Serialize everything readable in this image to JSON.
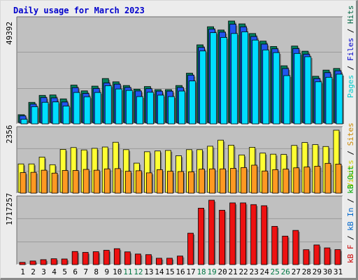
{
  "chart_data": [
    {
      "type": "bar",
      "title": "Daily usage for March 2023",
      "ylabel_max": "49392",
      "legend": [
        {
          "label": "Pages",
          "color": "#00cccc"
        },
        {
          "label": "Files",
          "color": "#0000cc"
        },
        {
          "label": "Hits",
          "color": "#006644"
        }
      ],
      "colors": {
        "Hits": "#00805c",
        "Files": "#2255ee",
        "Pages": "#00ddff"
      },
      "ylim": [
        0,
        49392
      ],
      "categories": [
        "1",
        "2",
        "3",
        "4",
        "5",
        "6",
        "7",
        "8",
        "9",
        "10",
        "11",
        "12",
        "13",
        "14",
        "15",
        "16",
        "17",
        "18",
        "19",
        "20",
        "21",
        "22",
        "23",
        "24",
        "25",
        "26",
        "27",
        "28",
        "29",
        "30",
        "31"
      ],
      "weekend_days": [
        "11",
        "12",
        "18",
        "19",
        "25",
        "26"
      ],
      "series": [
        {
          "name": "Hits",
          "values": [
            3800,
            9800,
            13200,
            13400,
            11500,
            18200,
            15400,
            17700,
            21400,
            19800,
            18000,
            16200,
            17500,
            16000,
            16000,
            18000,
            24000,
            37800,
            46600,
            45000,
            49392,
            48000,
            43300,
            39600,
            37000,
            27600,
            37200,
            34700,
            22500,
            25500,
            26300
          ]
        },
        {
          "name": "Files",
          "values": [
            3600,
            9300,
            12500,
            12300,
            10300,
            17300,
            14500,
            16900,
            19600,
            19000,
            17400,
            15700,
            16800,
            15600,
            15600,
            17400,
            23400,
            36900,
            45800,
            44300,
            48200,
            46900,
            42200,
            38500,
            36200,
            26600,
            36300,
            33600,
            21700,
            24600,
            25500
          ]
        },
        {
          "name": "Pages",
          "values": [
            2300,
            8400,
            10500,
            10700,
            8700,
            15300,
            13200,
            15300,
            18600,
            17000,
            16300,
            13300,
            15400,
            14000,
            13300,
            16000,
            20900,
            35500,
            44400,
            42100,
            44000,
            44800,
            40800,
            36000,
            34700,
            23500,
            34300,
            32700,
            20500,
            22700,
            24200
          ]
        }
      ]
    },
    {
      "type": "bar",
      "ylabel_max": "2356",
      "legend": [
        {
          "label": "Visits",
          "color": "#cccc00"
        },
        {
          "label": "Sites",
          "color": "#cc8800"
        }
      ],
      "colors": {
        "Visits": "#ffff33",
        "Sites": "#ff9922"
      },
      "ylim": [
        0,
        2356
      ],
      "categories": [
        "1",
        "2",
        "3",
        "4",
        "5",
        "6",
        "7",
        "8",
        "9",
        "10",
        "11",
        "12",
        "13",
        "14",
        "15",
        "16",
        "17",
        "18",
        "19",
        "20",
        "21",
        "22",
        "23",
        "24",
        "25",
        "26",
        "27",
        "28",
        "29",
        "30",
        "31"
      ],
      "series": [
        {
          "name": "Visits",
          "values": [
            1080,
            1080,
            1340,
            1050,
            1630,
            1700,
            1610,
            1670,
            1720,
            1900,
            1620,
            1110,
            1540,
            1570,
            1590,
            1390,
            1620,
            1620,
            1750,
            1980,
            1790,
            1420,
            1710,
            1490,
            1450,
            1440,
            1780,
            1890,
            1810,
            1740,
            2356
          ]
        },
        {
          "name": "Sites",
          "values": [
            780,
            790,
            870,
            760,
            860,
            860,
            900,
            870,
            920,
            930,
            830,
            850,
            770,
            890,
            830,
            820,
            810,
            910,
            920,
            920,
            940,
            970,
            1060,
            840,
            890,
            910,
            960,
            990,
            1020,
            1130,
            1100
          ]
        }
      ]
    },
    {
      "type": "bar",
      "ylabel_max": "1717257",
      "legend": [
        {
          "label": "kB F",
          "color": "#cc0000"
        },
        {
          "label": "kB In",
          "color": "#0066cc"
        },
        {
          "label": "kB Out",
          "color": "#00aa00"
        }
      ],
      "colors": {
        "kB F": "#ee1111"
      },
      "ylim": [
        0,
        1717257
      ],
      "categories": [
        "1",
        "2",
        "3",
        "4",
        "5",
        "6",
        "7",
        "8",
        "9",
        "10",
        "11",
        "12",
        "13",
        "14",
        "15",
        "16",
        "17",
        "18",
        "19",
        "20",
        "21",
        "22",
        "23",
        "24",
        "25",
        "26",
        "27",
        "28",
        "29",
        "30",
        "31"
      ],
      "series": [
        {
          "name": "kB F",
          "values": [
            60000,
            96000,
            132000,
            156000,
            150000,
            350000,
            326000,
            344000,
            382000,
            425000,
            340000,
            282000,
            266000,
            170000,
            170000,
            228000,
            838000,
            1505000,
            1717257,
            1450000,
            1645000,
            1645000,
            1600000,
            1570000,
            1020000,
            760000,
            912000,
            398000,
            524000,
            446000,
            400000
          ]
        }
      ]
    }
  ]
}
